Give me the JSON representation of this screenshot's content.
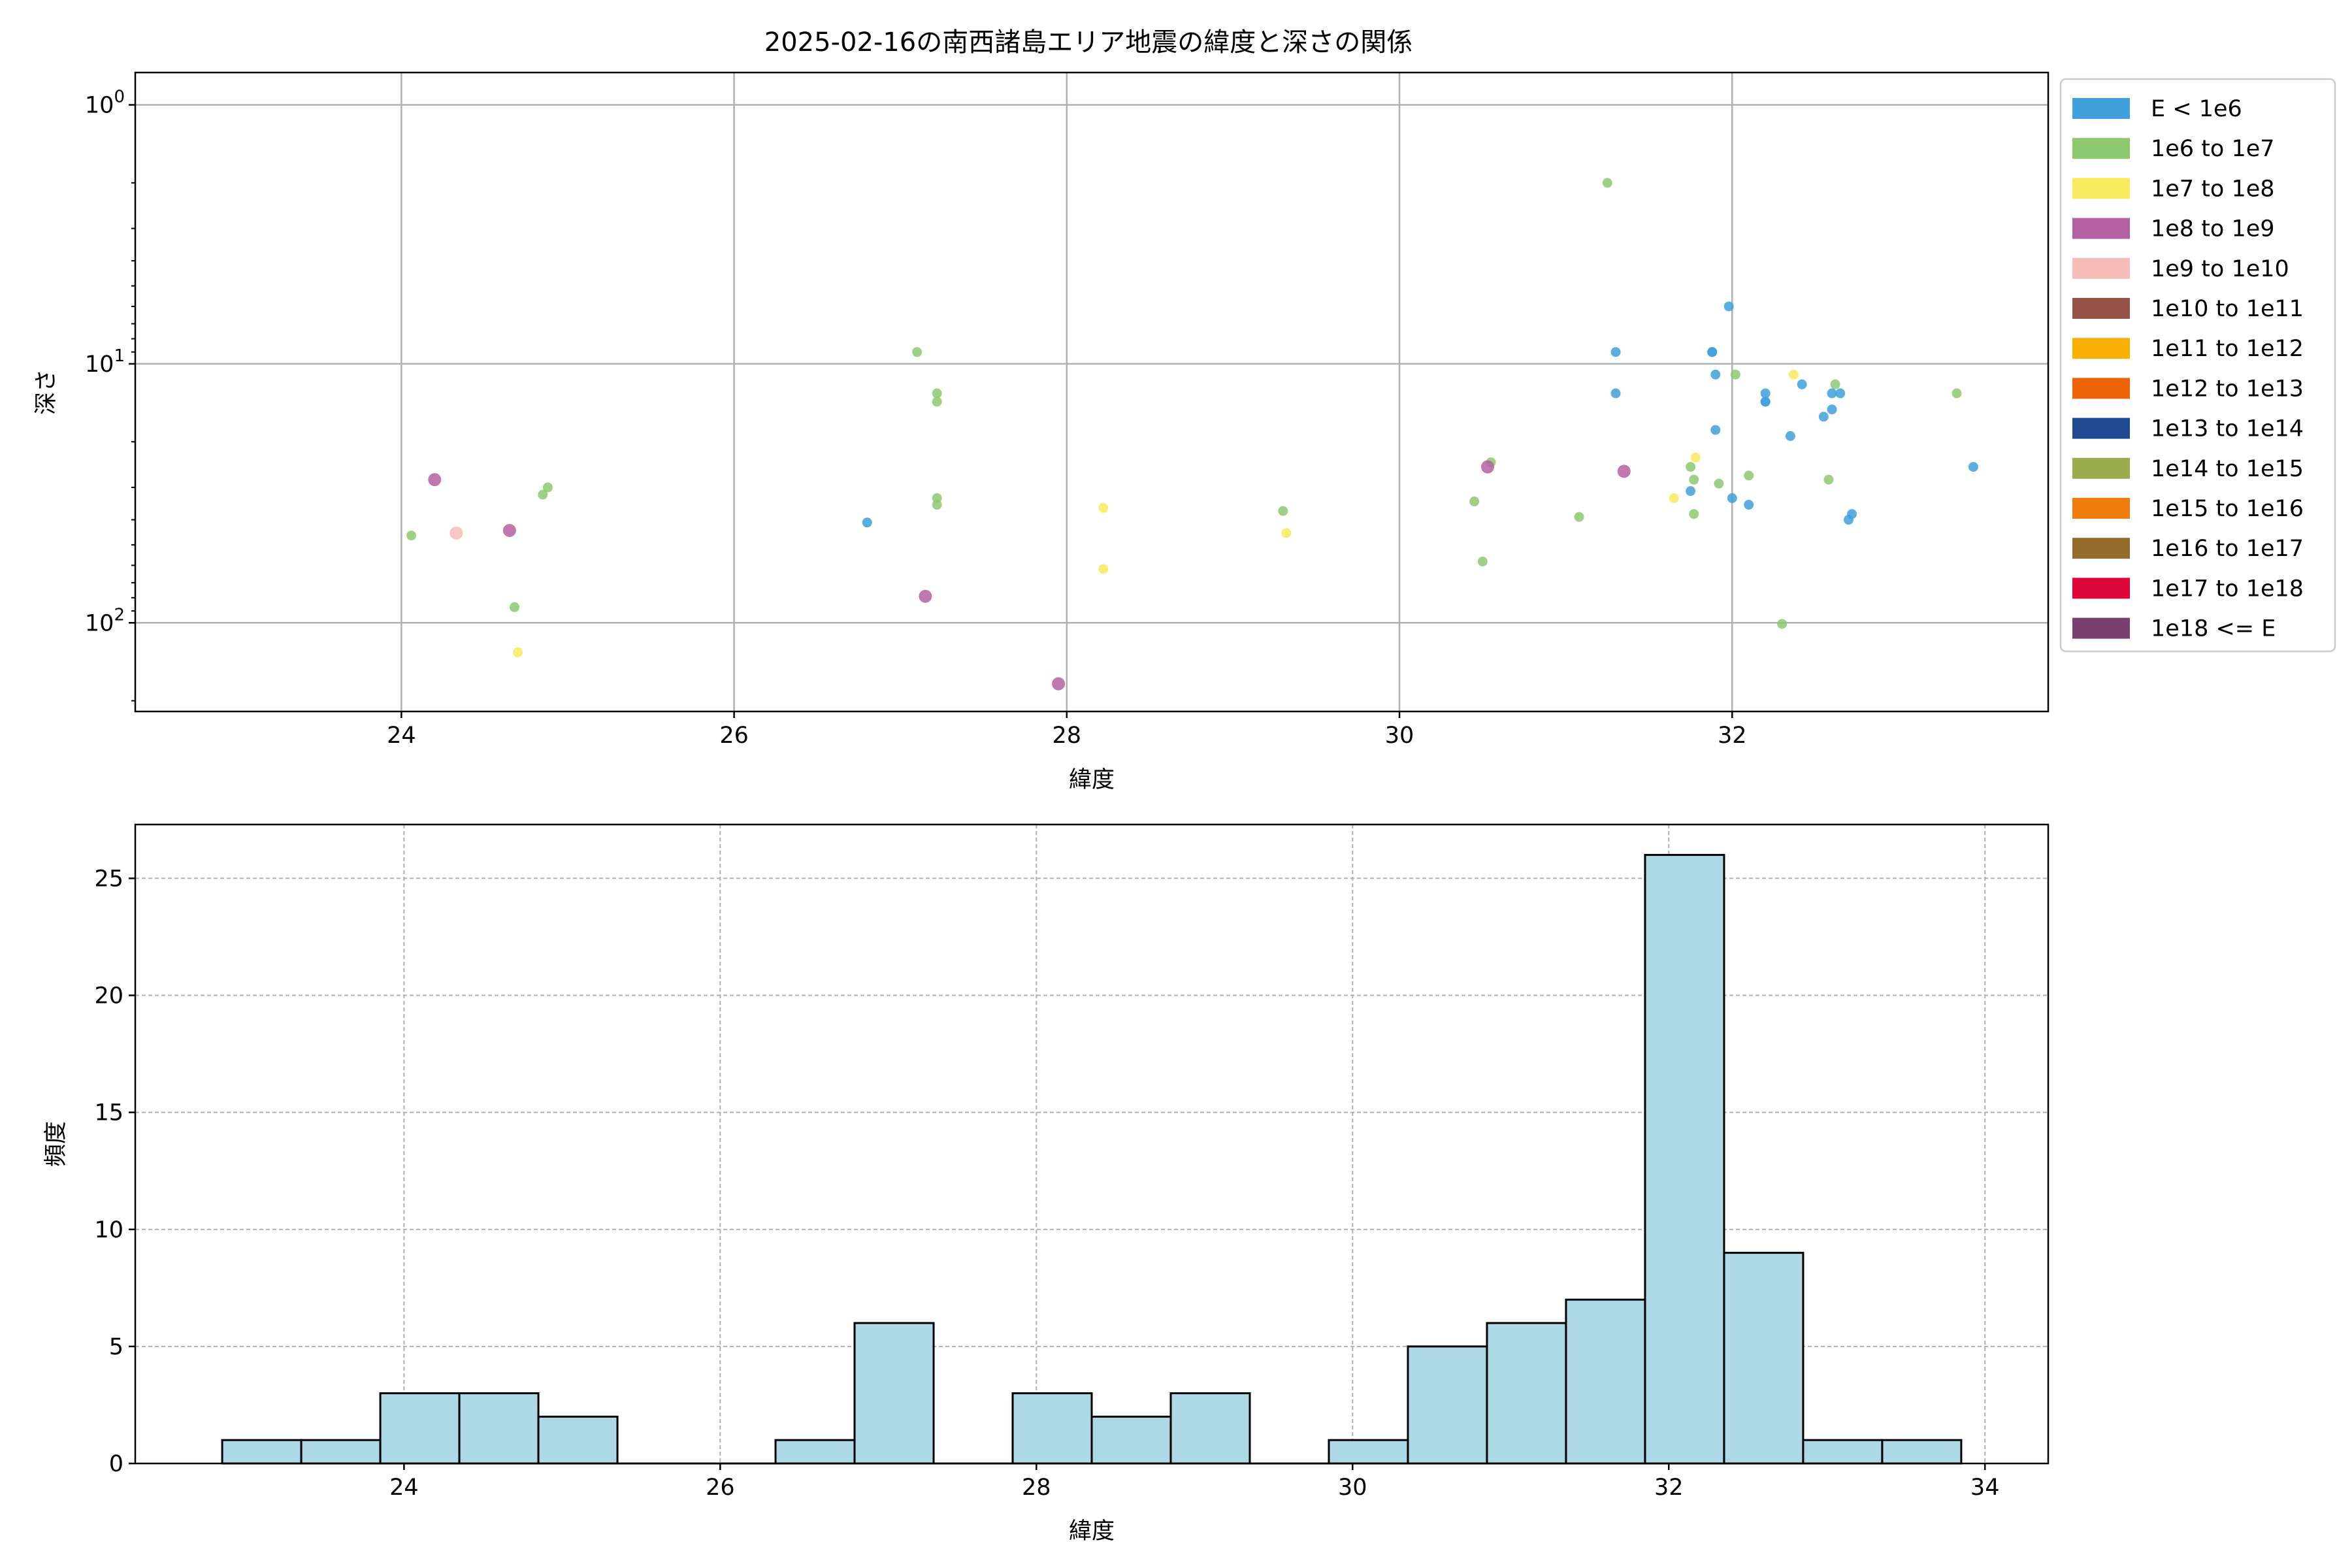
{
  "title": "2025-02-16の南西諸島エリア地震の緯度と深さの関係",
  "chart_data": [
    {
      "type": "scatter",
      "xlabel": "緯度",
      "ylabel": "深さ",
      "xlim": [
        22.4,
        33.9
      ],
      "ylim": [
        220,
        0.75
      ],
      "y_scale": "log",
      "y_inverted": true,
      "x_ticks": [
        "24",
        "26",
        "28",
        "30",
        "32"
      ],
      "y_ticks": [
        "10⁰",
        "10¹",
        "10²"
      ],
      "grid": true,
      "legend_position": "outside-right",
      "legend": [
        {
          "label": "E < 1e6",
          "color": "#3fa0dc"
        },
        {
          "label": "1e6 to 1e7",
          "color": "#8dc870"
        },
        {
          "label": "1e7 to 1e8",
          "color": "#f7ea5d"
        },
        {
          "label": "1e8 to 1e9",
          "color": "#b461a2"
        },
        {
          "label": "1e9 to 1e10",
          "color": "#f5bcb8"
        },
        {
          "label": "1e10 to 1e11",
          "color": "#955148"
        },
        {
          "label": "1e11 to 1e12",
          "color": "#f8b007"
        },
        {
          "label": "1e12 to 1e13",
          "color": "#ee6208"
        },
        {
          "label": "1e13 to 1e14",
          "color": "#1f4a92"
        },
        {
          "label": "1e14 to 1e15",
          "color": "#9bac4e"
        },
        {
          "label": "1e15 to 1e16",
          "color": "#ef7c0d"
        },
        {
          "label": "1e16 to 1e17",
          "color": "#936b2c"
        },
        {
          "label": "1e17 to 1e18",
          "color": "#dc0738"
        },
        {
          "label": "1e18 <= E",
          "color": "#793f6f"
        }
      ],
      "series": [
        {
          "name": "E < 1e6",
          "color": "#3fa0dc",
          "points": [
            [
              26.8,
              41
            ],
            [
              31.3,
              9
            ],
            [
              31.3,
              13
            ],
            [
              31.98,
              6
            ],
            [
              31.88,
              9
            ],
            [
              31.88,
              9
            ],
            [
              31.9,
              11
            ],
            [
              32.2,
              13
            ],
            [
              32.2,
              14
            ],
            [
              32.2,
              14
            ],
            [
              32.42,
              12
            ],
            [
              32.6,
              13
            ],
            [
              32.65,
              13
            ],
            [
              32.55,
              16
            ],
            [
              32.6,
              15
            ],
            [
              32.35,
              19
            ],
            [
              31.9,
              18
            ],
            [
              31.75,
              31
            ],
            [
              32,
              33
            ],
            [
              32.1,
              35
            ],
            [
              32.7,
              40
            ],
            [
              32.72,
              38
            ],
            [
              33.45,
              25
            ]
          ]
        },
        {
          "name": "1e6 to 1e7",
          "color": "#8dc870",
          "points": [
            [
              24.06,
              46
            ],
            [
              24.85,
              32
            ],
            [
              24.88,
              30
            ],
            [
              24.68,
              87
            ],
            [
              27.1,
              9
            ],
            [
              27.22,
              13
            ],
            [
              27.22,
              14
            ],
            [
              27.22,
              33
            ],
            [
              27.22,
              35
            ],
            [
              29.3,
              37
            ],
            [
              30.45,
              34
            ],
            [
              30.5,
              58
            ],
            [
              30.55,
              24
            ],
            [
              31.08,
              39
            ],
            [
              31.25,
              2
            ],
            [
              32.02,
              11
            ],
            [
              32.62,
              12
            ],
            [
              31.75,
              25
            ],
            [
              31.77,
              28
            ],
            [
              31.77,
              38
            ],
            [
              31.92,
              29
            ],
            [
              32.1,
              27
            ],
            [
              32.58,
              28
            ],
            [
              32.3,
              101
            ],
            [
              33.35,
              13
            ]
          ]
        },
        {
          "name": "1e7 to 1e8",
          "color": "#f7ea5d",
          "points": [
            [
              24.7,
              130
            ],
            [
              28.22,
              36
            ],
            [
              28.22,
              62
            ],
            [
              29.32,
              45
            ],
            [
              31.65,
              33
            ],
            [
              31.78,
              23
            ],
            [
              32.37,
              11
            ]
          ]
        },
        {
          "name": "1e8 to 1e9",
          "color": "#b461a2",
          "points": [
            [
              24.2,
              28
            ],
            [
              24.65,
              44
            ],
            [
              27.15,
              79
            ],
            [
              27.95,
              172
            ],
            [
              30.53,
              25
            ],
            [
              31.35,
              26
            ]
          ]
        },
        {
          "name": "1e9 to 1e10",
          "color": "#f5bcb8",
          "points": [
            [
              24.33,
              45
            ]
          ]
        }
      ]
    },
    {
      "type": "bar",
      "xlabel": "緯度",
      "ylabel": "頻度",
      "xlim": [
        22.3,
        34.4
      ],
      "ylim": [
        0,
        27.3
      ],
      "x_ticks": [
        "24",
        "26",
        "28",
        "30",
        "32",
        "34"
      ],
      "y_ticks": [
        "0",
        "5",
        "10",
        "15",
        "20",
        "25"
      ],
      "grid": true,
      "bar_color": "#add8e6",
      "bin_edges": [
        22.85,
        23.35,
        23.85,
        24.35,
        24.85,
        25.35,
        25.85,
        26.35,
        26.85,
        27.35,
        27.85,
        28.35,
        28.85,
        29.35,
        29.85,
        30.35,
        30.85,
        31.35,
        31.85,
        32.35,
        32.85,
        33.35,
        33.85
      ],
      "values": [
        1,
        1,
        3,
        3,
        2,
        0,
        0,
        1,
        6,
        0,
        3,
        2,
        3,
        0,
        1,
        5,
        6,
        7,
        26,
        9,
        1,
        1
      ]
    }
  ]
}
